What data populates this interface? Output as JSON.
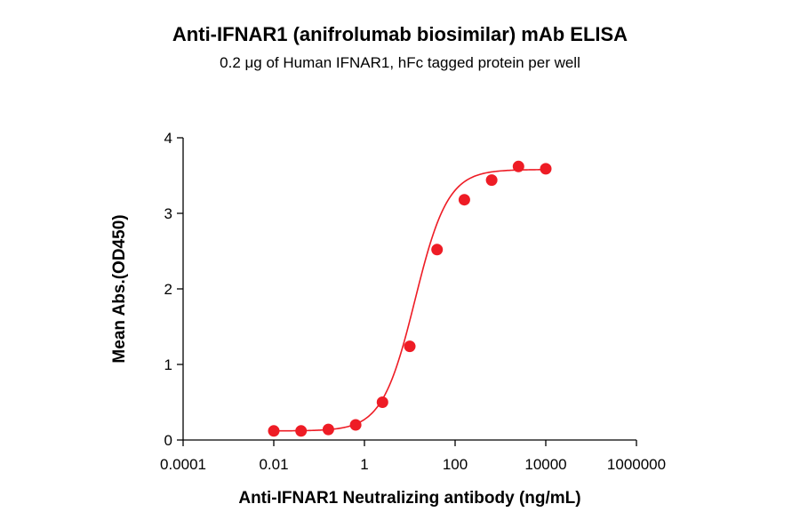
{
  "chart_data": {
    "type": "scatter",
    "title": "Anti-IFNAR1 (anifrolumab biosimilar) mAb ELISA",
    "subtitle": "0.2 μg of Human IFNAR1, hFc tagged protein per well",
    "xlabel": "Anti-IFNAR1 Neutralizing antibody (ng/mL)",
    "ylabel": "Mean Abs.(OD450)",
    "x_scale": "log10",
    "xlim": [
      0.0001,
      1000000
    ],
    "ylim": [
      0,
      4
    ],
    "x_ticks": [
      "0.0001",
      "0.01",
      "1",
      "100",
      "10000",
      "1000000"
    ],
    "y_ticks": [
      "0",
      "1",
      "2",
      "3",
      "4"
    ],
    "grid": false,
    "legend": "none",
    "color": "#ee1c25",
    "series": [
      {
        "x": [
          0.01,
          0.04,
          0.16,
          0.64,
          2.5,
          10,
          40,
          160,
          640,
          2500,
          10000
        ],
        "y": [
          0.12,
          0.12,
          0.14,
          0.2,
          0.5,
          1.24,
          2.52,
          3.18,
          3.44,
          3.62,
          3.59
        ]
      }
    ],
    "fit": {
      "type": "4PL",
      "bottom": 0.12,
      "top": 3.58,
      "ec50": 13,
      "hill": 1.2
    }
  }
}
